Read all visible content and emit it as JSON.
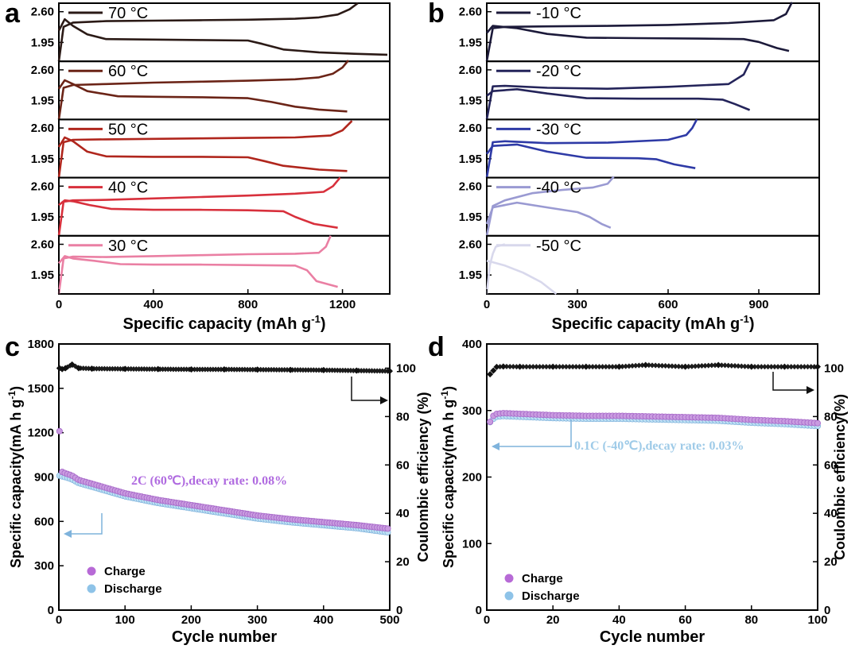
{
  "chart_data": [
    {
      "panel": "a",
      "type": "line",
      "xlabel": "Specific capacity (mAh g",
      "xlabel_sup": "-1",
      "xlabel_end": ")",
      "xlim": [
        0,
        1400
      ],
      "xticks": [
        "0",
        "400",
        "800",
        "1200"
      ],
      "xtick_values": [
        0,
        400,
        800,
        1200
      ],
      "yticks": [
        "2.60",
        "1.95"
      ],
      "ytick_values": [
        2.6,
        1.95
      ],
      "ylim": [
        1.55,
        2.78
      ],
      "subplots": [
        {
          "label": "70 °C",
          "color": "#2b1a16",
          "charge": {
            "x": [
              0,
              20,
              60,
              200,
              400,
              600,
              800,
              1000,
              1100,
              1180,
              1230,
              1265
            ],
            "y": [
              1.55,
              2.28,
              2.37,
              2.4,
              2.41,
              2.42,
              2.43,
              2.45,
              2.48,
              2.54,
              2.65,
              2.78
            ]
          },
          "discharge": {
            "x": [
              0,
              25,
              60,
              120,
              200,
              400,
              600,
              800,
              860,
              950,
              1100,
              1250,
              1390
            ],
            "y": [
              2.2,
              2.44,
              2.3,
              2.12,
              2.02,
              2.01,
              2.0,
              1.99,
              1.92,
              1.8,
              1.74,
              1.71,
              1.69
            ]
          }
        },
        {
          "label": "60 °C",
          "color": "#6b2417",
          "charge": {
            "x": [
              0,
              20,
              60,
              200,
              400,
              600,
              800,
              1000,
              1100,
              1160,
              1200,
              1225
            ],
            "y": [
              1.55,
              2.22,
              2.28,
              2.3,
              2.33,
              2.35,
              2.37,
              2.4,
              2.44,
              2.52,
              2.65,
              2.8
            ]
          },
          "discharge": {
            "x": [
              0,
              25,
              60,
              120,
              250,
              400,
              600,
              800,
              900,
              1000,
              1100,
              1220
            ],
            "y": [
              2.2,
              2.38,
              2.3,
              2.15,
              2.04,
              2.03,
              2.02,
              2.0,
              1.92,
              1.82,
              1.76,
              1.72
            ]
          }
        },
        {
          "label": "50 °C",
          "color": "#b0261d",
          "charge": {
            "x": [
              0,
              20,
              60,
              200,
              400,
              600,
              800,
              1000,
              1150,
              1200,
              1240
            ],
            "y": [
              1.55,
              2.3,
              2.35,
              2.36,
              2.37,
              2.38,
              2.39,
              2.4,
              2.44,
              2.55,
              2.75
            ]
          },
          "discharge": {
            "x": [
              0,
              25,
              60,
              120,
              200,
              400,
              600,
              800,
              870,
              950,
              1100,
              1220
            ],
            "y": [
              2.2,
              2.4,
              2.32,
              2.1,
              2.0,
              1.99,
              1.99,
              1.98,
              1.9,
              1.8,
              1.72,
              1.69
            ]
          }
        },
        {
          "label": "40 °C",
          "color": "#d8303c",
          "charge": {
            "x": [
              0,
              20,
              60,
              200,
              400,
              600,
              800,
              1000,
              1120,
              1160,
              1190
            ],
            "y": [
              1.55,
              2.27,
              2.3,
              2.31,
              2.34,
              2.37,
              2.4,
              2.44,
              2.48,
              2.6,
              2.78
            ]
          },
          "discharge": {
            "x": [
              0,
              25,
              60,
              130,
              220,
              400,
              600,
              800,
              950,
              1000,
              1080,
              1180
            ],
            "y": [
              2.2,
              2.3,
              2.28,
              2.2,
              2.12,
              2.1,
              2.1,
              2.09,
              2.07,
              1.95,
              1.8,
              1.72
            ]
          }
        },
        {
          "label": "30 °C",
          "color": "#ea7fa3",
          "charge": {
            "x": [
              0,
              20,
              60,
              200,
              400,
              600,
              800,
              1000,
              1100,
              1130,
              1150
            ],
            "y": [
              1.55,
              2.3,
              2.34,
              2.33,
              2.35,
              2.37,
              2.39,
              2.4,
              2.42,
              2.55,
              2.78
            ]
          },
          "discharge": {
            "x": [
              0,
              25,
              60,
              150,
              260,
              400,
              600,
              800,
              1000,
              1050,
              1090,
              1180
            ],
            "y": [
              2.2,
              2.35,
              2.3,
              2.25,
              2.18,
              2.17,
              2.17,
              2.16,
              2.15,
              2.05,
              1.82,
              1.7
            ]
          }
        }
      ]
    },
    {
      "panel": "b",
      "type": "line",
      "xlabel": "Specific capacity (mAh g",
      "xlabel_sup": "-1",
      "xlabel_end": ")",
      "xlim": [
        0,
        1100
      ],
      "xticks": [
        "0",
        "300",
        "600",
        "900"
      ],
      "xtick_values": [
        0,
        300,
        600,
        900
      ],
      "yticks": [
        "2.60",
        "1.95"
      ],
      "ytick_values": [
        2.6,
        1.95
      ],
      "ylim": [
        1.55,
        2.78
      ],
      "subplots": [
        {
          "label": "-10 °C",
          "color": "#1c1a3a",
          "charge": {
            "x": [
              0,
              20,
              60,
              200,
              400,
              600,
              800,
              950,
              990,
              1010
            ],
            "y": [
              1.55,
              2.25,
              2.28,
              2.29,
              2.3,
              2.32,
              2.36,
              2.42,
              2.55,
              2.8
            ]
          },
          "discharge": {
            "x": [
              0,
              20,
              100,
              200,
              330,
              500,
              700,
              850,
              900,
              960,
              1000
            ],
            "y": [
              2.15,
              2.3,
              2.25,
              2.13,
              2.05,
              2.04,
              2.03,
              2.02,
              1.96,
              1.83,
              1.77
            ]
          }
        },
        {
          "label": "-20 °C",
          "color": "#24245a",
          "charge": {
            "x": [
              0,
              20,
              60,
              200,
              400,
              600,
              800,
              850,
              870
            ],
            "y": [
              1.55,
              2.25,
              2.26,
              2.22,
              2.2,
              2.24,
              2.3,
              2.5,
              2.76
            ]
          },
          "discharge": {
            "x": [
              0,
              20,
              100,
              200,
              330,
              500,
              700,
              780,
              820,
              870
            ],
            "y": [
              2.05,
              2.15,
              2.19,
              2.1,
              2.0,
              1.99,
              1.99,
              1.97,
              1.88,
              1.75
            ]
          }
        },
        {
          "label": "-30 °C",
          "color": "#2e3aa6",
          "charge": {
            "x": [
              0,
              20,
              60,
              200,
              400,
              600,
              660,
              680,
              695
            ],
            "y": [
              1.55,
              2.3,
              2.32,
              2.28,
              2.29,
              2.35,
              2.45,
              2.6,
              2.78
            ]
          },
          "discharge": {
            "x": [
              0,
              20,
              100,
              200,
              330,
              500,
              560,
              620,
              690
            ],
            "y": [
              2.05,
              2.22,
              2.25,
              2.1,
              1.97,
              1.96,
              1.94,
              1.83,
              1.75
            ]
          }
        },
        {
          "label": "-40 °C",
          "color": "#9a9ad2",
          "charge": {
            "x": [
              0,
              20,
              60,
              150,
              250,
              350,
              400,
              420
            ],
            "y": [
              1.55,
              2.18,
              2.3,
              2.45,
              2.52,
              2.57,
              2.65,
              2.8
            ]
          },
          "discharge": {
            "x": [
              0,
              20,
              100,
              200,
              300,
              340,
              380,
              410
            ],
            "y": [
              1.8,
              2.15,
              2.25,
              2.15,
              2.05,
              1.95,
              1.8,
              1.72
            ]
          }
        },
        {
          "label": "-50 °C",
          "color": "#d8d8ec",
          "charge": {
            "x": [
              0,
              10,
              20,
              30,
              60
            ],
            "y": [
              1.55,
              2.15,
              2.4,
              2.55,
              2.6
            ]
          },
          "discharge": {
            "x": [
              0,
              20,
              60,
              120,
              180,
              230
            ],
            "y": [
              2.25,
              2.22,
              2.15,
              2.0,
              1.8,
              1.55
            ]
          }
        }
      ]
    },
    {
      "panel": "c",
      "type": "scatter",
      "xlabel": "Cycle number",
      "ylabel": "Specific capacity(mA h g",
      "ylabel_sup": "-1",
      "ylabel_end": ")",
      "y2label": "Coulombic efficiency (%)",
      "xlim": [
        0,
        500
      ],
      "ylim": [
        0,
        1800
      ],
      "y2lim": [
        0,
        110
      ],
      "xticks": [
        "0",
        "100",
        "200",
        "300",
        "400",
        "500"
      ],
      "xtick_values": [
        0,
        100,
        200,
        300,
        400,
        500
      ],
      "yticks": [
        "0",
        "300",
        "600",
        "900",
        "1200",
        "1500",
        "1800"
      ],
      "ytick_values": [
        0,
        300,
        600,
        900,
        1200,
        1500,
        1800
      ],
      "y2ticks": [
        "0",
        "20",
        "40",
        "60",
        "80",
        "100"
      ],
      "y2tick_values": [
        0,
        20,
        40,
        60,
        80,
        100
      ],
      "annotation": "2C (60℃),decay rate: 0.08%",
      "annotation_color": "#b06be0",
      "legend": [
        "Charge",
        "Discharge"
      ],
      "legend_colors": [
        "#b76ad6",
        "#8ec3e8"
      ],
      "series": [
        {
          "name": "Charge",
          "x": [
            1,
            5,
            10,
            20,
            30,
            50,
            100,
            150,
            200,
            250,
            300,
            350,
            400,
            450,
            500
          ],
          "y": [
            1210,
            935,
            925,
            910,
            880,
            855,
            790,
            745,
            710,
            675,
            640,
            615,
            595,
            575,
            550
          ]
        },
        {
          "name": "Discharge",
          "x": [
            1,
            5,
            10,
            20,
            30,
            50,
            100,
            150,
            200,
            250,
            300,
            350,
            400,
            450,
            500
          ],
          "y": [
            920,
            915,
            910,
            895,
            870,
            845,
            780,
            735,
            700,
            665,
            630,
            605,
            585,
            565,
            535
          ]
        },
        {
          "name": "Coulombic efficiency",
          "axis": "right",
          "x": [
            1,
            5,
            10,
            20,
            30,
            50,
            100,
            150,
            200,
            250,
            300,
            350,
            400,
            450,
            500
          ],
          "y": [
            100,
            99.6,
            100,
            101.5,
            100,
            99.8,
            99.7,
            99.6,
            99.5,
            99.5,
            99.4,
            99.3,
            99.2,
            99.0,
            98.8
          ]
        }
      ]
    },
    {
      "panel": "d",
      "type": "scatter",
      "xlabel": "Cycle number",
      "ylabel": "Specific capacity(mA h g",
      "ylabel_sup": "-1",
      "ylabel_end": ")",
      "y2label": "Coulombic efficiency(%)",
      "xlim": [
        0,
        100
      ],
      "ylim": [
        0,
        400
      ],
      "y2lim": [
        0,
        110
      ],
      "xticks": [
        "0",
        "20",
        "40",
        "60",
        "80",
        "100"
      ],
      "xtick_values": [
        0,
        20,
        40,
        60,
        80,
        100
      ],
      "yticks": [
        "0",
        "100",
        "200",
        "300",
        "400"
      ],
      "ytick_values": [
        0,
        100,
        200,
        300,
        400
      ],
      "y2ticks": [
        "0",
        "20",
        "40",
        "60",
        "80",
        "100"
      ],
      "y2tick_values": [
        0,
        20,
        40,
        60,
        80,
        100
      ],
      "annotation": "0.1C (-40℃),decay rate: 0.03%",
      "annotation_color": "#9fcbe8",
      "legend": [
        "Charge",
        "Discharge"
      ],
      "legend_colors": [
        "#b76ad6",
        "#8ec3e8"
      ],
      "series": [
        {
          "name": "Charge",
          "x": [
            1,
            2,
            3,
            5,
            10,
            20,
            30,
            40,
            50,
            60,
            70,
            80,
            90,
            100
          ],
          "y": [
            283,
            292,
            295,
            296,
            295,
            293,
            292,
            292,
            291,
            290,
            289,
            286,
            284,
            281
          ]
        },
        {
          "name": "Discharge",
          "x": [
            1,
            2,
            3,
            5,
            10,
            20,
            30,
            40,
            50,
            60,
            70,
            80,
            90,
            100
          ],
          "y": [
            285,
            290,
            293,
            294,
            293,
            291,
            290,
            290,
            289,
            288,
            287,
            284,
            282,
            279
          ]
        },
        {
          "name": "Coulombic efficiency",
          "axis": "right",
          "x": [
            1,
            2,
            3,
            5,
            10,
            20,
            30,
            40,
            48,
            60,
            70,
            80,
            90,
            100
          ],
          "y": [
            97.5,
            99.0,
            100.5,
            100.7,
            100.6,
            100.6,
            100.6,
            100.6,
            101.3,
            100.6,
            101.3,
            100.6,
            100.6,
            100.6
          ]
        }
      ]
    }
  ]
}
